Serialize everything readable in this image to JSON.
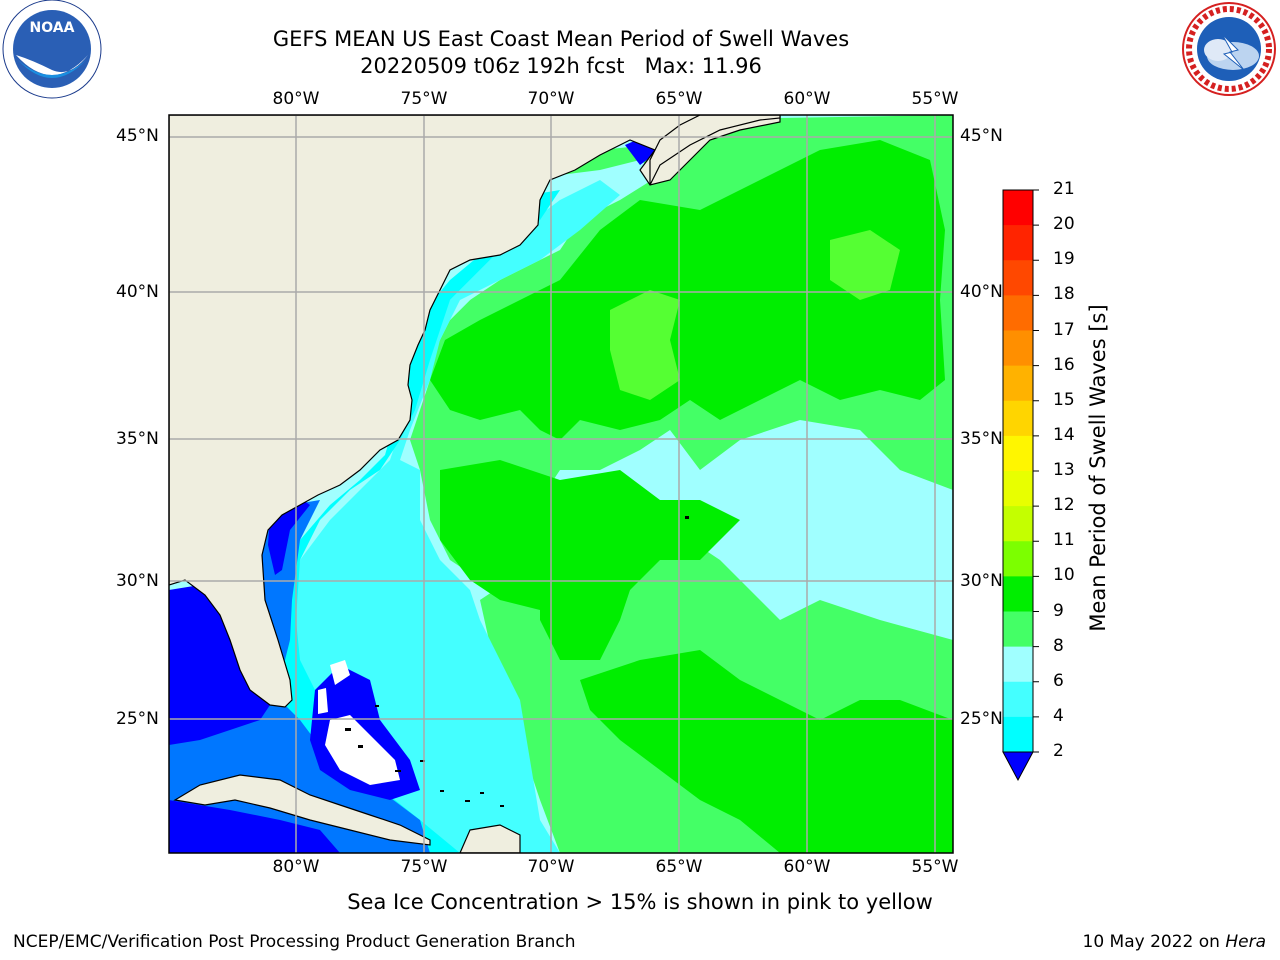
{
  "header": {
    "title_line1": "GEFS MEAN US East Coast Mean Period of Swell Waves",
    "title_line2": "20220509 t06z 192h fcst   Max: 11.96"
  },
  "logos": {
    "left": {
      "name": "NOAA logo",
      "text": "NOAA",
      "ring_text": "NATIONAL OCEANIC AND ATMOSPHERIC ADMINISTRATION · U.S. DEPARTMENT OF COMMERCE"
    },
    "right": {
      "name": "National Weather Service logo",
      "ring_text": "NATIONAL WEATHER SERVICE"
    }
  },
  "map": {
    "lon_labels": [
      "80°W",
      "75°W",
      "70°W",
      "65°W",
      "60°W",
      "55°W"
    ],
    "lat_labels": [
      "45°N",
      "40°N",
      "35°N",
      "30°N",
      "25°N"
    ],
    "colors": {
      "land": "#efeedf",
      "grid": "#aaaaaa",
      "ice_or_land_mask": "#ffffff"
    }
  },
  "colorbar": {
    "label": "Mean Period of Swell Waves [s]",
    "ticks": [
      "21",
      "20",
      "19",
      "18",
      "17",
      "16",
      "15",
      "14",
      "13",
      "12",
      "11",
      "10",
      "9",
      "8",
      "6",
      "4",
      "2"
    ],
    "colors": [
      "#ff0000",
      "#ff2400",
      "#ff4800",
      "#ff6c00",
      "#ff8f00",
      "#ffb200",
      "#ffd500",
      "#fff600",
      "#e8ff00",
      "#c4ff00",
      "#7cff00",
      "#00ee00",
      "#44ff66",
      "#a0ffff",
      "#44ffff",
      "#00ffff",
      "#0077ff",
      "#0000ff"
    ],
    "extend": "min"
  },
  "subtitle": "Sea Ice Concentration > 15% is shown in pink to yellow",
  "footer": {
    "left": "NCEP/EMC/Verification Post Processing Product Generation Branch",
    "right_date": "10 May 2022 on ",
    "right_host": "Hera"
  }
}
